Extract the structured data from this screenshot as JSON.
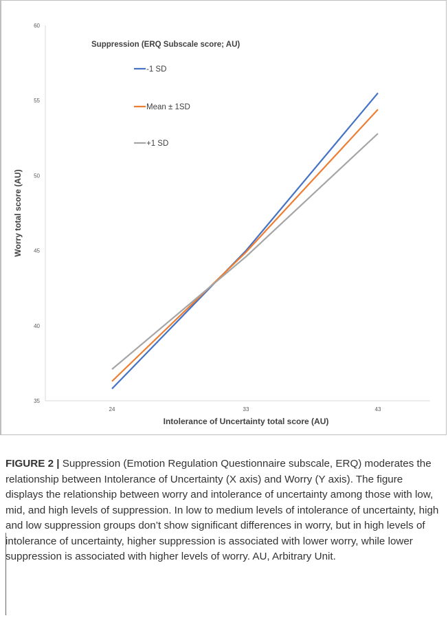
{
  "chart_data": {
    "type": "line",
    "title": "",
    "xlabel": "Intolerance of Uncertainty total score (AU)",
    "ylabel": "Worry total score (AU)",
    "x": [
      24,
      33,
      43
    ],
    "x_tick_labels": [
      "24",
      "33",
      "43"
    ],
    "ylim": [
      35,
      60
    ],
    "y_ticks": [
      35,
      40,
      45,
      50,
      55,
      60
    ],
    "grid": false,
    "legend_title": "Suppression (ERQ Subscale score; AU)",
    "legend_placement": "top-left",
    "series": [
      {
        "name": "-1 SD",
        "color": "#4472c4",
        "values": [
          35.8,
          45.0,
          55.5
        ]
      },
      {
        "name": "Mean ± 1SD",
        "color": "#ed7d31",
        "values": [
          36.3,
          44.9,
          54.4
        ]
      },
      {
        "name": "+1 SD",
        "color": "#a5a5a5",
        "values": [
          37.1,
          44.6,
          52.8
        ]
      }
    ]
  },
  "caption": {
    "label": "FIGURE 2 |",
    "text": " Suppression (Emotion Regulation Questionnaire subscale, ERQ) moderates the relationship between Intolerance of Uncertainty (X axis) and Worry (Y axis). The figure displays the relationship between worry and intolerance of uncertainty among those with low, mid, and high levels of suppression. In low to medium levels of intolerance of uncertainty, high and low suppression groups don’t show significant differences in worry, but in high levels of intolerance of uncertainty, higher suppression is associated with lower worry, while lower suppression is associated with higher levels of worry. AU, Arbitrary Unit."
  }
}
